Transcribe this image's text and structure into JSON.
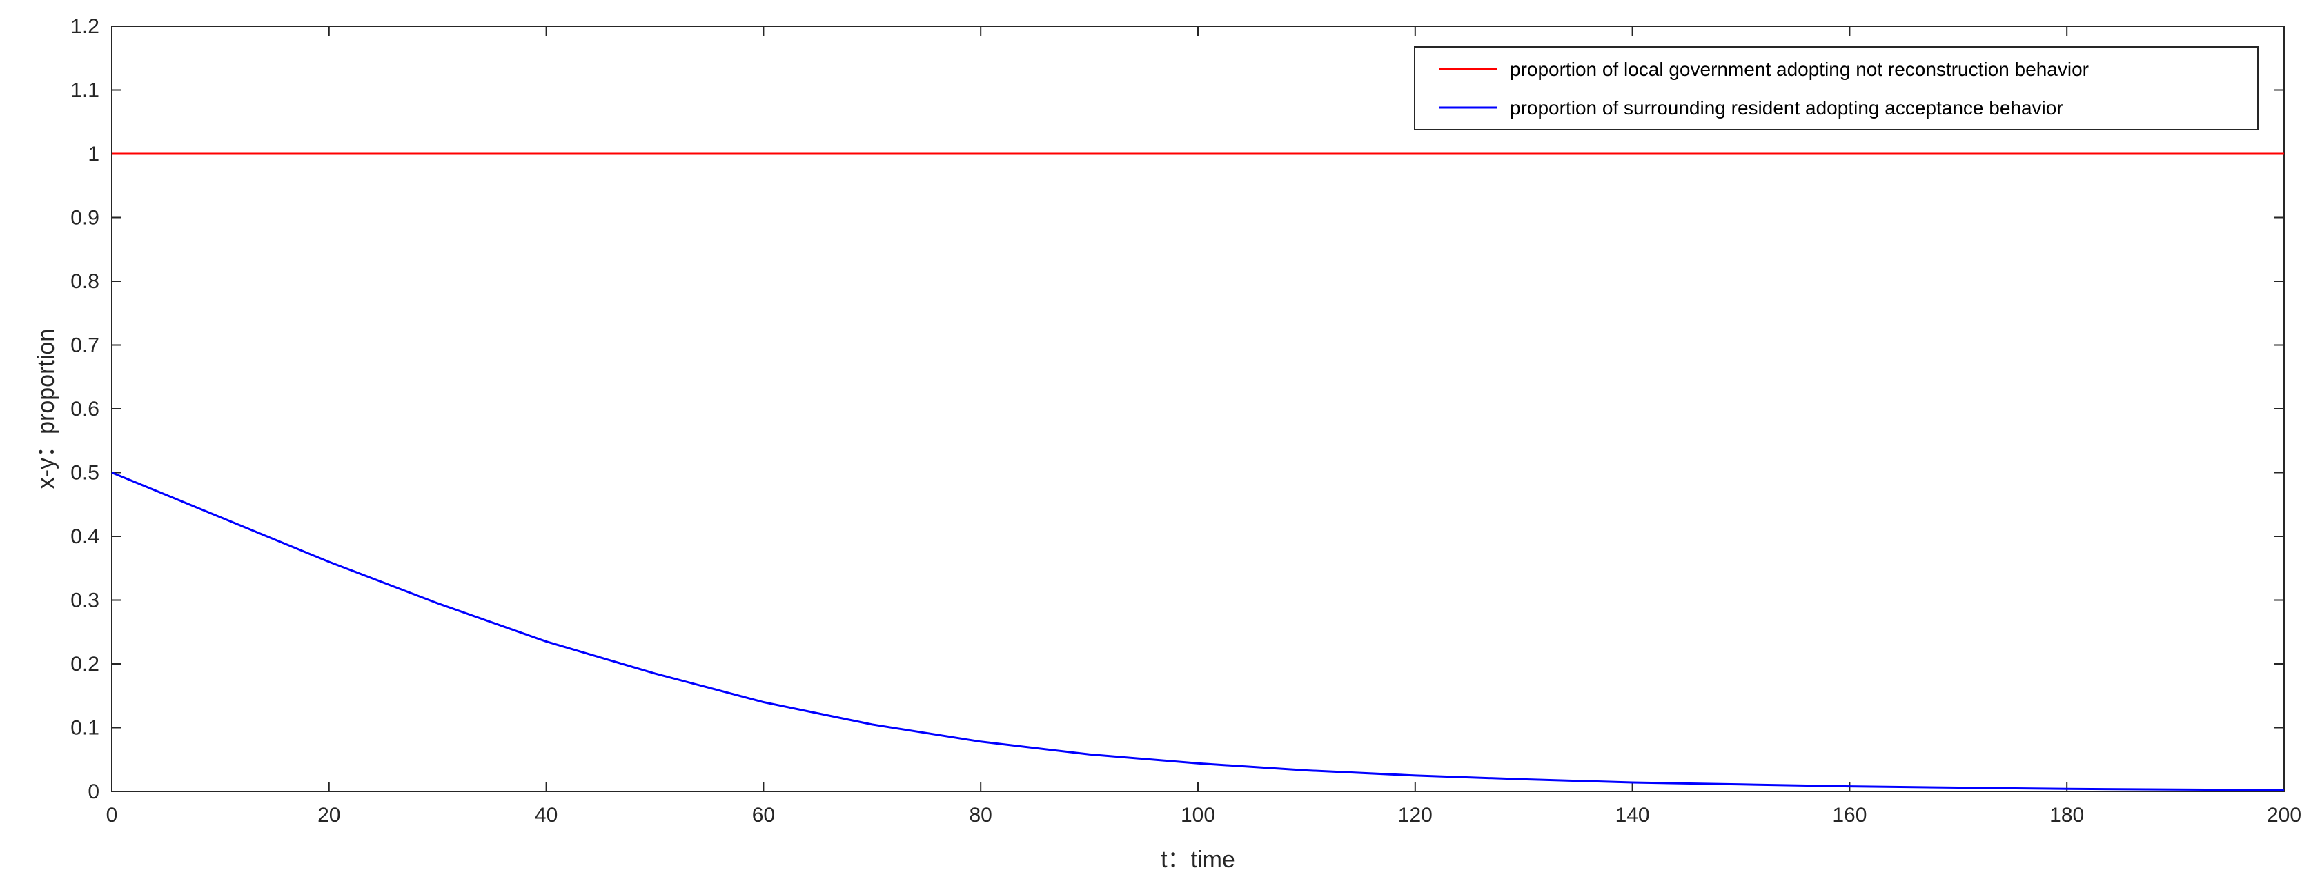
{
  "chart_data": {
    "type": "line",
    "xlabel": "t：time",
    "ylabel": "x-y：proportion",
    "xlim": [
      0,
      200
    ],
    "ylim": [
      0,
      1.2
    ],
    "x_ticks": [
      "0",
      "20",
      "40",
      "60",
      "80",
      "100",
      "120",
      "140",
      "160",
      "180",
      "200"
    ],
    "y_ticks": [
      "0",
      "0.1",
      "0.2",
      "0.3",
      "0.4",
      "0.5",
      "0.6",
      "0.7",
      "0.8",
      "0.9",
      "1",
      "1.1",
      "1.2"
    ],
    "grid": false,
    "legend_position": "top-right",
    "series": [
      {
        "name": "proportion of local government adopting not reconstruction behavior",
        "color": "#ff0000",
        "x": [
          0,
          20,
          40,
          60,
          80,
          100,
          120,
          140,
          160,
          180,
          200
        ],
        "y": [
          1,
          1,
          1,
          1,
          1,
          1,
          1,
          1,
          1,
          1,
          1
        ]
      },
      {
        "name": "proportion of surrounding resident adopting acceptance behavior",
        "color": "#0000ff",
        "x": [
          0,
          10,
          20,
          30,
          40,
          50,
          60,
          70,
          80,
          90,
          100,
          110,
          120,
          130,
          140,
          150,
          160,
          170,
          180,
          190,
          200
        ],
        "y": [
          0.5,
          0.43,
          0.36,
          0.295,
          0.235,
          0.185,
          0.14,
          0.105,
          0.078,
          0.058,
          0.044,
          0.033,
          0.025,
          0.019,
          0.014,
          0.011,
          0.008,
          0.006,
          0.004,
          0.003,
          0.002
        ]
      }
    ]
  }
}
